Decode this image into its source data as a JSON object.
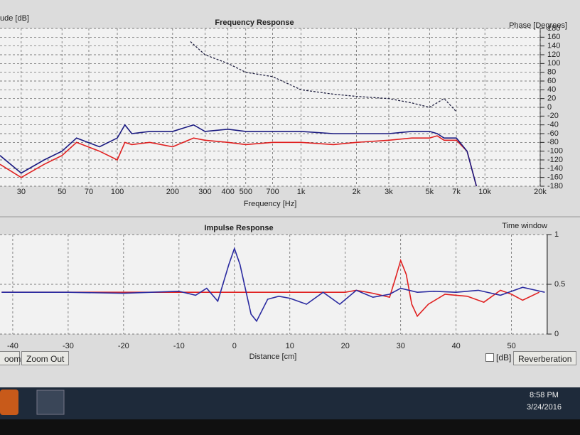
{
  "chart_data": [
    {
      "type": "line",
      "title": "Frequency Response",
      "ylabel": "ude [dB]",
      "xlabel": "Frequency [Hz]",
      "y2label": "Phase [Degrees]",
      "xlog": true,
      "grid": true,
      "xlim": [
        23,
        20000
      ],
      "xticks": [
        30,
        50,
        70,
        100,
        200,
        300,
        400,
        500,
        700,
        {
          "value": 1000,
          "label": "1k"
        },
        {
          "value": 2000,
          "label": "2k"
        },
        {
          "value": 3000,
          "label": "3k"
        },
        {
          "value": 5000,
          "label": "5k"
        },
        {
          "value": 7000,
          "label": "7k"
        },
        {
          "value": 10000,
          "label": "10k"
        },
        {
          "value": 20000,
          "label": "20k"
        }
      ],
      "y2lim": [
        -180,
        180
      ],
      "y2ticks": [
        180,
        160,
        140,
        120,
        100,
        80,
        60,
        40,
        20,
        0,
        -20,
        -40,
        -60,
        -80,
        -100,
        -120,
        -140,
        -160,
        -180
      ],
      "series": [
        {
          "color": "#e02020",
          "axis": "y2",
          "dash": false,
          "x": [
            23,
            30,
            40,
            50,
            60,
            80,
            100,
            110,
            120,
            150,
            200,
            260,
            300,
            400,
            500,
            700,
            1000,
            1500,
            2000,
            3000,
            4000,
            5000,
            5500,
            6000,
            7000,
            8000,
            9000
          ],
          "values": [
            -130,
            -160,
            -130,
            -110,
            -80,
            -100,
            -120,
            -80,
            -85,
            -80,
            -90,
            -70,
            -75,
            -80,
            -85,
            -80,
            -80,
            -85,
            -80,
            -75,
            -70,
            -70,
            -65,
            -75,
            -75,
            -100,
            -180
          ]
        },
        {
          "color": "#1a1a80",
          "axis": "y2",
          "dash": false,
          "x": [
            23,
            30,
            40,
            50,
            60,
            80,
            100,
            110,
            120,
            150,
            200,
            260,
            300,
            400,
            500,
            700,
            1000,
            1500,
            2000,
            3000,
            4000,
            5000,
            5500,
            6000,
            7000,
            8000,
            9000
          ],
          "values": [
            -110,
            -150,
            -120,
            -100,
            -70,
            -90,
            -70,
            -40,
            -60,
            -55,
            -55,
            -40,
            -55,
            -50,
            -55,
            -55,
            -55,
            -60,
            -60,
            -60,
            -55,
            -55,
            -60,
            -70,
            -70,
            -100,
            -180
          ]
        },
        {
          "color": "#202040",
          "axis": "y2",
          "dash": true,
          "x": [
            250,
            300,
            400,
            500,
            700,
            1000,
            1500,
            2000,
            3000,
            4000,
            5000,
            6000,
            7000
          ],
          "values": [
            150,
            120,
            100,
            80,
            70,
            40,
            30,
            25,
            20,
            10,
            0,
            20,
            -10
          ]
        }
      ]
    },
    {
      "type": "line",
      "title": "Impulse Response",
      "xlabel": "Distance [cm]",
      "annotation": "Time window",
      "xlog": false,
      "grid": true,
      "xlim": [
        -42.3,
        56.2
      ],
      "xticks": [
        -40,
        -30,
        -20,
        -10,
        0,
        10,
        20,
        30,
        40,
        50
      ],
      "y2lim": [
        0,
        1
      ],
      "y2ticks": [
        0,
        0.5,
        1
      ],
      "series": [
        {
          "color": "#e02020",
          "axis": "y2",
          "dash": false,
          "x": [
            -42,
            -30,
            -20,
            -10,
            0,
            10,
            20,
            22,
            25,
            28,
            29,
            30,
            31,
            32,
            33,
            35,
            38,
            42,
            45,
            48,
            50,
            52,
            55
          ],
          "values": [
            0.42,
            0.42,
            0.42,
            0.42,
            0.42,
            0.42,
            0.42,
            0.44,
            0.41,
            0.37,
            0.55,
            0.74,
            0.6,
            0.3,
            0.18,
            0.3,
            0.4,
            0.38,
            0.32,
            0.44,
            0.4,
            0.34,
            0.42
          ]
        },
        {
          "color": "#2a2aa0",
          "axis": "y2",
          "dash": false,
          "x": [
            -42,
            -30,
            -20,
            -10,
            -7,
            -5,
            -3,
            -1,
            0,
            1,
            3,
            4,
            6,
            8,
            10,
            13,
            16,
            19,
            22,
            25,
            28,
            30,
            33,
            36,
            40,
            44,
            48,
            52,
            56
          ],
          "values": [
            0.42,
            0.42,
            0.41,
            0.43,
            0.39,
            0.46,
            0.33,
            0.7,
            0.86,
            0.7,
            0.2,
            0.13,
            0.35,
            0.38,
            0.36,
            0.3,
            0.42,
            0.3,
            0.44,
            0.37,
            0.4,
            0.46,
            0.42,
            0.43,
            0.42,
            0.44,
            0.39,
            0.47,
            0.42
          ]
        }
      ]
    }
  ],
  "ui": {
    "zoom_in": "oom",
    "zoom_out": "Zoom Out",
    "db_toggle": "[dB]",
    "reverberation": "Reverberation",
    "clock_time": "8:58 PM",
    "clock_date": "3/24/2016"
  }
}
